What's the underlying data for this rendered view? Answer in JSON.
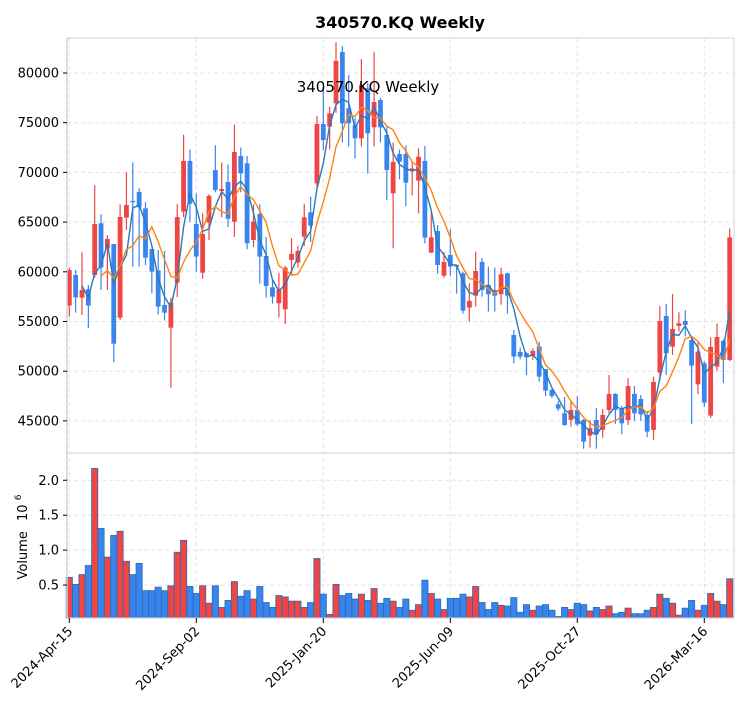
{
  "chart_data": {
    "type": "candlestick",
    "title": "340570.KQ  Weekly",
    "inner_title": "340570.KQ  Weekly",
    "ylabel_volume": "Volume",
    "volume_exponent_base": "10",
    "volume_exponent_power": "6",
    "price_ylim": [
      41770,
      83520
    ],
    "volume_ylim": [
      0,
      2.39
    ],
    "price_yticks": [
      45000,
      50000,
      55000,
      60000,
      65000,
      70000,
      75000,
      80000
    ],
    "price_ytick_labels": [
      "45000",
      "50000",
      "55000",
      "60000",
      "65000",
      "70000",
      "75000",
      "80000"
    ],
    "volume_yticks": [
      0.5,
      1.0,
      1.5,
      2.0
    ],
    "volume_ytick_labels": [
      "0.5",
      "1.0",
      "1.5",
      "2.0"
    ],
    "xticks": [
      {
        "index": 0,
        "label": "2024-Apr-15"
      },
      {
        "index": 20,
        "label": "2024-Sep-02"
      },
      {
        "index": 40,
        "label": "2025-Jan-20"
      },
      {
        "index": 60,
        "label": "2025-Jun-09"
      },
      {
        "index": 80,
        "label": "2025-Oct-27"
      },
      {
        "index": 100,
        "label": "2026-Mar-16"
      }
    ],
    "grid": true,
    "colors": {
      "up": "#ef4545",
      "down": "#3a84ee",
      "volume_edge": "#2b6cb0",
      "ma_short": "#2a7ab8",
      "ma_long": "#ff8311",
      "grid": "#e3e3e3",
      "frame": "#cfd3dc"
    },
    "moving_averages": [
      {
        "name": "MA3",
        "period": 3
      },
      {
        "name": "MA6",
        "period": 6
      }
    ],
    "ohlc_fields": [
      "open",
      "high",
      "low",
      "close"
    ],
    "ohlc": [
      [
        56600,
        60420,
        55490,
        60180
      ],
      [
        59680,
        60180,
        55890,
        57430
      ],
      [
        57400,
        61960,
        55650,
        58170
      ],
      [
        58240,
        58670,
        54320,
        56600
      ],
      [
        59680,
        68700,
        59400,
        64810
      ],
      [
        64880,
        65780,
        58170,
        60420
      ],
      [
        62360,
        63700,
        58170,
        63300
      ],
      [
        62800,
        62800,
        50900,
        52770
      ],
      [
        55390,
        66790,
        55150,
        65510
      ],
      [
        65450,
        70010,
        64200,
        66720
      ],
      [
        67130,
        71000,
        60520,
        67000
      ],
      [
        68030,
        68400,
        60520,
        66480
      ],
      [
        66380,
        66990,
        60660,
        61420
      ],
      [
        62290,
        62290,
        57840,
        60020
      ],
      [
        60120,
        62200,
        55720,
        56500
      ],
      [
        56660,
        62100,
        55100,
        55890
      ],
      [
        54380,
        57400,
        48350,
        56900
      ],
      [
        58910,
        66800,
        57440,
        65510
      ],
      [
        66050,
        73800,
        65500,
        71150
      ],
      [
        71150,
        72300,
        65000,
        66850
      ],
      [
        64810,
        67900,
        60000,
        61530
      ],
      [
        59910,
        65870,
        59300,
        63800
      ],
      [
        64940,
        67800,
        63200,
        67630
      ],
      [
        70230,
        72730,
        68000,
        68230
      ],
      [
        68130,
        71000,
        65500,
        68330
      ],
      [
        69040,
        70800,
        64500,
        65340
      ],
      [
        65040,
        74800,
        63500,
        72050
      ],
      [
        71650,
        72500,
        68000,
        69910
      ],
      [
        70910,
        71650,
        62270,
        62870
      ],
      [
        63200,
        66800,
        62500,
        65050
      ],
      [
        65820,
        66800,
        58800,
        61530
      ],
      [
        61590,
        63500,
        57400,
        58570
      ],
      [
        58440,
        59300,
        56800,
        57500
      ],
      [
        56830,
        59900,
        55400,
        58170
      ],
      [
        56230,
        60600,
        54750,
        60420
      ],
      [
        61200,
        63400,
        59600,
        61800
      ],
      [
        60920,
        62600,
        60400,
        62100
      ],
      [
        63540,
        66850,
        62600,
        65480
      ],
      [
        65980,
        67560,
        63000,
        64650
      ],
      [
        68900,
        75700,
        68300,
        74870
      ],
      [
        74870,
        78600,
        72250,
        73260
      ],
      [
        74600,
        76600,
        72300,
        75940
      ],
      [
        76950,
        83100,
        76000,
        81210
      ],
      [
        82110,
        82700,
        73000,
        74940
      ],
      [
        76450,
        79800,
        72600,
        74940
      ],
      [
        74770,
        75500,
        71400,
        73430
      ],
      [
        73430,
        81400,
        72600,
        78790
      ],
      [
        78460,
        79000,
        69900,
        73930
      ],
      [
        74530,
        82100,
        72600,
        77080
      ],
      [
        77280,
        77500,
        73000,
        74530
      ],
      [
        73760,
        74600,
        67200,
        70240
      ],
      [
        67900,
        73000,
        62360,
        71050
      ],
      [
        71850,
        72300,
        69300,
        71080
      ],
      [
        71850,
        72700,
        66600,
        68970
      ],
      [
        70200,
        71100,
        67700,
        70400
      ],
      [
        69170,
        72420,
        65880,
        71580
      ],
      [
        71150,
        72660,
        62860,
        63440
      ],
      [
        61930,
        66000,
        61900,
        63470
      ],
      [
        64100,
        64700,
        59800,
        60690
      ],
      [
        59610,
        62000,
        59400,
        60990
      ],
      [
        61690,
        64270,
        59600,
        60520
      ],
      [
        60690,
        60700,
        57800,
        60520
      ],
      [
        59850,
        60000,
        55800,
        56090
      ],
      [
        56400,
        58840,
        54990,
        57070
      ],
      [
        57600,
        62020,
        56500,
        60080
      ],
      [
        60990,
        61400,
        57500,
        58170
      ],
      [
        58670,
        60520,
        56000,
        57740
      ],
      [
        58170,
        60420,
        55990,
        57600
      ],
      [
        57740,
        60420,
        56700,
        59750
      ],
      [
        59850,
        59900,
        55800,
        57600
      ],
      [
        53640,
        54150,
        50800,
        51470
      ],
      [
        51940,
        52400,
        51200,
        51470
      ],
      [
        51800,
        51900,
        49620,
        51400
      ],
      [
        51530,
        52300,
        51100,
        52040
      ],
      [
        52470,
        52970,
        48950,
        49450
      ],
      [
        50220,
        50220,
        47500,
        48050
      ],
      [
        48110,
        48200,
        47300,
        47510
      ],
      [
        46670,
        47000,
        46000,
        46240
      ],
      [
        45770,
        47400,
        44500,
        44590
      ],
      [
        45100,
        46900,
        44420,
        46100
      ],
      [
        46100,
        47500,
        44500,
        44650
      ],
      [
        45090,
        45200,
        42200,
        42910
      ],
      [
        43520,
        45100,
        42300,
        44260
      ],
      [
        45090,
        46300,
        42200,
        43650
      ],
      [
        44100,
        46200,
        43300,
        45600
      ],
      [
        46100,
        49620,
        45800,
        47710
      ],
      [
        47710,
        47800,
        44700,
        46100
      ],
      [
        46270,
        46500,
        43650,
        44760
      ],
      [
        45090,
        49300,
        44600,
        48500
      ],
      [
        47710,
        48500,
        45000,
        45770
      ],
      [
        47200,
        47600,
        45000,
        45660
      ],
      [
        45600,
        46000,
        43350,
        43920
      ],
      [
        44090,
        49450,
        43100,
        48920
      ],
      [
        49860,
        56560,
        49000,
        55050
      ],
      [
        55550,
        56760,
        49620,
        51800
      ],
      [
        52470,
        57770,
        51630,
        54250
      ],
      [
        54550,
        55920,
        54000,
        54820
      ],
      [
        55050,
        56150,
        53500,
        54650
      ],
      [
        53140,
        53500,
        44690,
        50560
      ],
      [
        48680,
        52900,
        47700,
        51970
      ],
      [
        50790,
        51000,
        46400,
        46840
      ],
      [
        45530,
        53400,
        45300,
        52440
      ],
      [
        50460,
        54800,
        50000,
        53440
      ],
      [
        53040,
        53200,
        48800,
        51130
      ],
      [
        51130,
        64370,
        51000,
        63470
      ]
    ],
    "volume_millions": [
      0.61,
      0.51,
      0.65,
      0.78,
      2.17,
      1.31,
      0.9,
      1.21,
      1.27,
      0.84,
      0.65,
      0.81,
      0.42,
      0.42,
      0.47,
      0.42,
      0.49,
      0.97,
      1.14,
      0.48,
      0.38,
      0.49,
      0.24,
      0.49,
      0.18,
      0.28,
      0.55,
      0.34,
      0.42,
      0.3,
      0.48,
      0.25,
      0.18,
      0.35,
      0.33,
      0.27,
      0.27,
      0.18,
      0.25,
      0.88,
      0.37,
      0.08,
      0.51,
      0.35,
      0.38,
      0.3,
      0.37,
      0.28,
      0.45,
      0.24,
      0.31,
      0.27,
      0.18,
      0.3,
      0.14,
      0.22,
      0.57,
      0.38,
      0.3,
      0.15,
      0.31,
      0.31,
      0.37,
      0.33,
      0.48,
      0.25,
      0.15,
      0.25,
      0.21,
      0.2,
      0.32,
      0.11,
      0.22,
      0.14,
      0.2,
      0.22,
      0.14,
      0.05,
      0.18,
      0.15,
      0.24,
      0.22,
      0.13,
      0.18,
      0.15,
      0.2,
      0.09,
      0.11,
      0.17,
      0.09,
      0.09,
      0.14,
      0.18,
      0.37,
      0.31,
      0.24,
      0.07,
      0.17,
      0.28,
      0.14,
      0.21,
      0.38,
      0.27,
      0.22,
      0.59
    ]
  }
}
